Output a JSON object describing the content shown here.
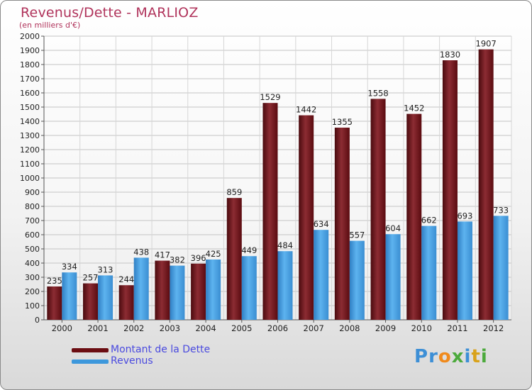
{
  "header": {
    "title": "Revenus/Dette - MARLIOZ",
    "subtitle": "(en milliers d'€)"
  },
  "legend": {
    "items": [
      {
        "label": "Montant de la Dette",
        "color": "#6b0d12"
      },
      {
        "label": "Revenus",
        "color": "#3d98dc"
      }
    ]
  },
  "logo": {
    "letters": [
      {
        "ch": "P",
        "color": "#3d8fd6"
      },
      {
        "ch": "r",
        "color": "#3d8fd6"
      },
      {
        "ch": "o",
        "color": "#f08a1c"
      },
      {
        "ch": "x",
        "color": "#4caa3c"
      },
      {
        "ch": "i",
        "color": "#3d8fd6"
      },
      {
        "ch": "t",
        "color": "#d9a21a"
      },
      {
        "ch": "i",
        "color": "#4caa3c"
      }
    ]
  },
  "chart_data": {
    "type": "bar",
    "title": "Revenus/Dette - MARLIOZ",
    "subtitle": "(en milliers d'€)",
    "categories": [
      "2000",
      "2001",
      "2002",
      "2003",
      "2004",
      "2005",
      "2006",
      "2007",
      "2008",
      "2009",
      "2010",
      "2011",
      "2012"
    ],
    "series": [
      {
        "name": "Montant de la Dette",
        "color": "#6b0d12",
        "values": [
          235,
          257,
          244,
          417,
          396,
          859,
          1529,
          1442,
          1355,
          1558,
          1452,
          1830,
          1907
        ]
      },
      {
        "name": "Revenus",
        "color": "#3d98dc",
        "values": [
          334,
          313,
          438,
          382,
          425,
          449,
          484,
          634,
          557,
          604,
          662,
          693,
          733
        ]
      }
    ],
    "ylim": [
      0,
      2000
    ],
    "yticks": [
      0,
      100,
      200,
      300,
      400,
      500,
      600,
      700,
      800,
      900,
      1000,
      1100,
      1200,
      1300,
      1400,
      1500,
      1600,
      1700,
      1800,
      1900,
      2000
    ],
    "grid": true,
    "legend_position": "bottom-left"
  }
}
